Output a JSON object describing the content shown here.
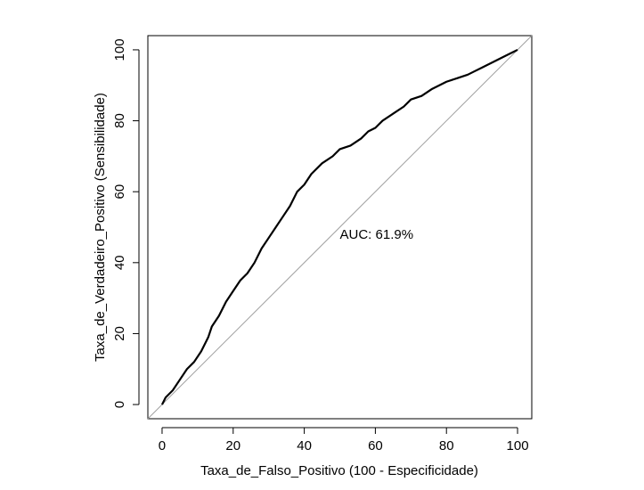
{
  "chart_data": {
    "type": "line",
    "title": "",
    "xlabel": "Taxa_de_Falso_Positivo (100 - Especificidade)",
    "ylabel": "Taxa_de_Verdadeiro_Positivo (Sensibilidade)",
    "xlim": [
      -4,
      104
    ],
    "ylim": [
      -4,
      104
    ],
    "xticks": [
      0,
      20,
      40,
      60,
      80,
      100
    ],
    "yticks": [
      0,
      20,
      40,
      60,
      80,
      100
    ],
    "grid": false,
    "annotation": {
      "text": "AUC: 61.9%",
      "x": 50,
      "y": 48
    },
    "reference_line": {
      "x": [
        -4,
        104
      ],
      "y": [
        -4,
        104
      ]
    },
    "series": [
      {
        "x": [
          0,
          1,
          2,
          3,
          5,
          7,
          9,
          11,
          13,
          14,
          16,
          18,
          20,
          22,
          24,
          26,
          28,
          30,
          32,
          34,
          36,
          37,
          38,
          40,
          42,
          45,
          48,
          50,
          53,
          56,
          58,
          60,
          62,
          65,
          68,
          70,
          73,
          76,
          78,
          80,
          83,
          86,
          88,
          90,
          92,
          94,
          96,
          98,
          100
        ],
        "y": [
          0,
          2,
          3,
          4,
          7,
          10,
          12,
          15,
          19,
          22,
          25,
          29,
          32,
          35,
          37,
          40,
          44,
          47,
          50,
          53,
          56,
          58,
          60,
          62,
          65,
          68,
          70,
          72,
          73,
          75,
          77,
          78,
          80,
          82,
          84,
          86,
          87,
          89,
          90,
          91,
          92,
          93,
          94,
          95,
          96,
          97,
          98,
          99,
          100
        ]
      }
    ]
  }
}
